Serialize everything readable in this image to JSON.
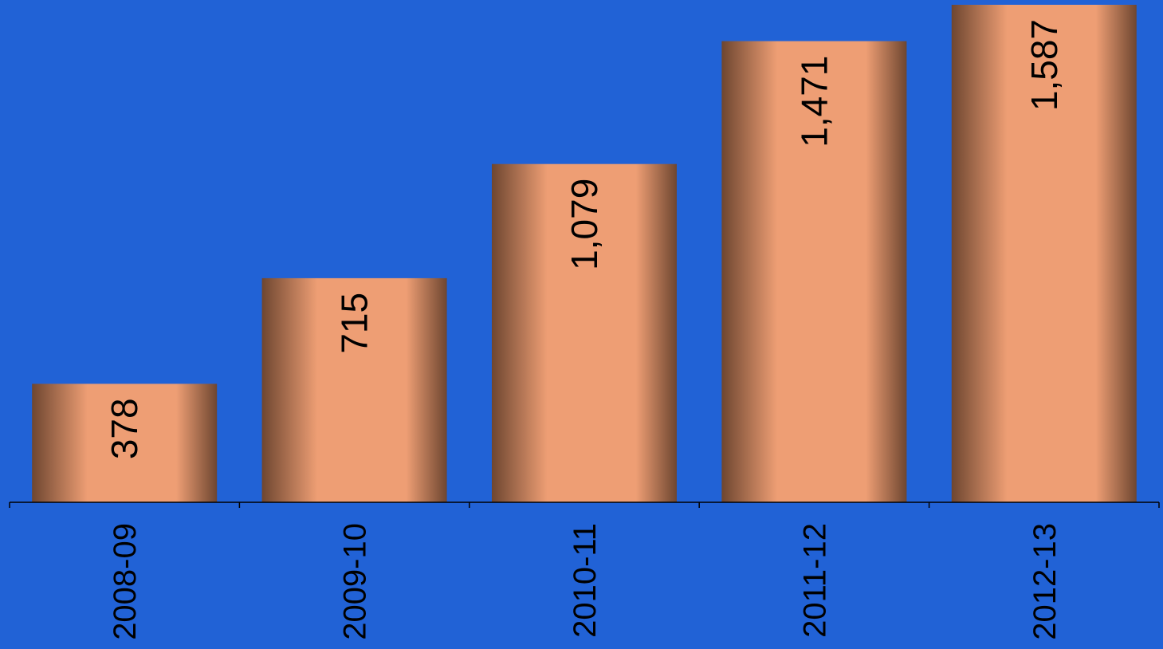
{
  "page": {
    "background": "#2162d6"
  },
  "chart_data": {
    "type": "bar",
    "categories": [
      "2008-09",
      "2009-10",
      "2010-11",
      "2011-12",
      "2012-13"
    ],
    "values": [
      378,
      715,
      1079,
      1471,
      1587
    ],
    "value_labels": [
      "378",
      "715",
      "1,079",
      "1,471",
      "1,587"
    ],
    "title": "",
    "xlabel": "",
    "ylabel": "",
    "ylim": [
      0,
      1600
    ],
    "grid": false,
    "legend": "none",
    "colors": {
      "bar_center": "#ee9e74",
      "bar_edge": "#6e4630",
      "axis": "#000000",
      "text": "#000000"
    }
  }
}
